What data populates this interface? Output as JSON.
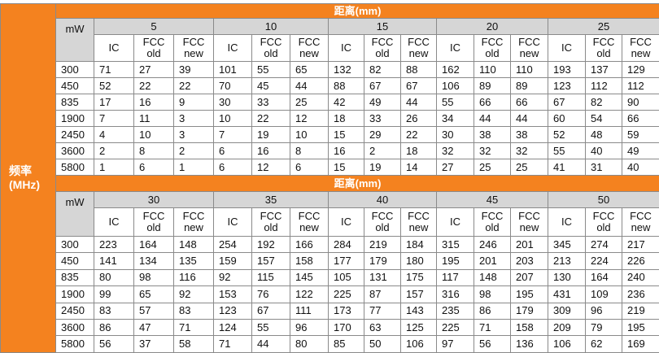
{
  "row_header": "频率\n(MHz)",
  "unit": "mW",
  "columns": [
    "IC",
    "FCC\nold",
    "FCC\nnew"
  ],
  "sections": [
    {
      "title": "距离(mm)",
      "distances": [
        "5",
        "10",
        "15",
        "20",
        "25"
      ],
      "rows": [
        {
          "label": "300",
          "values": [
            "71",
            "27",
            "39",
            "101",
            "55",
            "65",
            "132",
            "82",
            "88",
            "162",
            "110",
            "110",
            "193",
            "137",
            "129"
          ]
        },
        {
          "label": "450",
          "values": [
            "52",
            "22",
            "22",
            "70",
            "45",
            "44",
            "88",
            "67",
            "67",
            "106",
            "89",
            "89",
            "123",
            "112",
            "112"
          ]
        },
        {
          "label": "835",
          "values": [
            "17",
            "16",
            "9",
            "30",
            "33",
            "25",
            "42",
            "49",
            "44",
            "55",
            "66",
            "66",
            "67",
            "82",
            "90"
          ]
        },
        {
          "label": "1900",
          "values": [
            "7",
            "11",
            "3",
            "10",
            "22",
            "12",
            "18",
            "33",
            "26",
            "34",
            "44",
            "44",
            "60",
            "54",
            "66"
          ]
        },
        {
          "label": "2450",
          "values": [
            "4",
            "10",
            "3",
            "7",
            "19",
            "10",
            "15",
            "29",
            "22",
            "30",
            "38",
            "38",
            "52",
            "48",
            "59"
          ]
        },
        {
          "label": "3600",
          "values": [
            "2",
            "8",
            "2",
            "6",
            "16",
            "8",
            "16",
            "2",
            "18",
            "32",
            "32",
            "32",
            "55",
            "40",
            "49"
          ]
        },
        {
          "label": "5800",
          "values": [
            "1",
            "6",
            "1",
            "6",
            "12",
            "6",
            "15",
            "19",
            "14",
            "27",
            "25",
            "25",
            "41",
            "31",
            "40"
          ]
        }
      ]
    },
    {
      "title": "距离(mm)",
      "distances": [
        "30",
        "35",
        "40",
        "45",
        "50"
      ],
      "rows": [
        {
          "label": "300",
          "values": [
            "223",
            "164",
            "148",
            "254",
            "192",
            "166",
            "284",
            "219",
            "184",
            "315",
            "246",
            "201",
            "345",
            "274",
            "217"
          ]
        },
        {
          "label": "450",
          "values": [
            "141",
            "134",
            "135",
            "159",
            "157",
            "158",
            "177",
            "179",
            "180",
            "195",
            "201",
            "203",
            "213",
            "224",
            "226"
          ]
        },
        {
          "label": "835",
          "values": [
            "80",
            "98",
            "116",
            "92",
            "115",
            "145",
            "105",
            "131",
            "175",
            "117",
            "148",
            "207",
            "130",
            "164",
            "240"
          ]
        },
        {
          "label": "1900",
          "values": [
            "99",
            "65",
            "92",
            "153",
            "76",
            "122",
            "225",
            "87",
            "157",
            "316",
            "98",
            "195",
            "431",
            "109",
            "236"
          ]
        },
        {
          "label": "2450",
          "values": [
            "83",
            "57",
            "83",
            "123",
            "67",
            "111",
            "173",
            "77",
            "143",
            "235",
            "86",
            "179",
            "309",
            "96",
            "219"
          ]
        },
        {
          "label": "3600",
          "values": [
            "86",
            "47",
            "71",
            "124",
            "55",
            "96",
            "170",
            "63",
            "125",
            "225",
            "71",
            "158",
            "209",
            "79",
            "195"
          ]
        },
        {
          "label": "5800",
          "values": [
            "56",
            "37",
            "58",
            "71",
            "44",
            "80",
            "85",
            "50",
            "106",
            "97",
            "56",
            "136",
            "106",
            "62",
            "169"
          ]
        }
      ]
    }
  ]
}
